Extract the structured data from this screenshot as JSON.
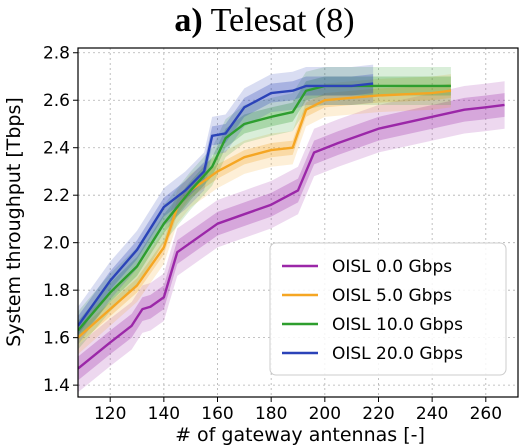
{
  "figure": {
    "title_tag": "a)",
    "title_text": "Telesat (8)"
  },
  "chart_data": {
    "type": "line",
    "title": "Telesat (8)",
    "xlabel": "# of gateway antennas [-]",
    "ylabel": "System throughput [Tbps]",
    "xlim": [
      108,
      272
    ],
    "ylim": [
      1.35,
      2.82
    ],
    "xticks": [
      120,
      140,
      160,
      180,
      200,
      220,
      240,
      260
    ],
    "yticks": [
      1.4,
      1.6,
      1.8,
      2.0,
      2.2,
      2.4,
      2.6,
      2.8
    ],
    "grid": true,
    "legend_position": "lower-right",
    "series": [
      {
        "name": "OISL 0.0 Gbps",
        "color": "#9b27a8",
        "x": [
          108,
          120,
          128,
          132,
          135,
          140,
          145,
          150,
          155,
          160,
          170,
          180,
          190,
          193,
          196,
          205,
          220,
          240,
          252,
          260,
          267
        ],
        "y": [
          1.47,
          1.58,
          1.65,
          1.72,
          1.73,
          1.77,
          1.96,
          2.0,
          2.04,
          2.08,
          2.12,
          2.16,
          2.22,
          2.3,
          2.38,
          2.42,
          2.48,
          2.53,
          2.56,
          2.57,
          2.58
        ],
        "band_inner": 0.05,
        "band_outer": 0.1
      },
      {
        "name": "OISL 5.0 Gbps",
        "color": "#f5a623",
        "x": [
          108,
          120,
          130,
          140,
          145,
          150,
          160,
          170,
          180,
          188,
          193,
          200,
          210,
          220,
          240,
          247
        ],
        "y": [
          1.6,
          1.72,
          1.82,
          1.98,
          2.15,
          2.22,
          2.3,
          2.36,
          2.39,
          2.4,
          2.56,
          2.6,
          2.61,
          2.62,
          2.63,
          2.64
        ],
        "band_inner": 0.03,
        "band_outer": 0.07
      },
      {
        "name": "OISL 10.0 Gbps",
        "color": "#2e9e2e",
        "x": [
          108,
          120,
          130,
          140,
          150,
          158,
          163,
          170,
          180,
          188,
          193,
          200,
          220,
          247
        ],
        "y": [
          1.63,
          1.79,
          1.9,
          2.08,
          2.22,
          2.32,
          2.44,
          2.5,
          2.53,
          2.55,
          2.64,
          2.66,
          2.66,
          2.66
        ],
        "band_inner": 0.04,
        "band_outer": 0.08
      },
      {
        "name": "OISL 20.0 Gbps",
        "color": "#2b43b8",
        "x": [
          108,
          120,
          130,
          140,
          148,
          155,
          158,
          163,
          170,
          180,
          188,
          193,
          200,
          210,
          218
        ],
        "y": [
          1.65,
          1.84,
          1.97,
          2.15,
          2.22,
          2.3,
          2.45,
          2.46,
          2.57,
          2.63,
          2.64,
          2.66,
          2.66,
          2.66,
          2.67
        ],
        "band_inner": 0.04,
        "band_outer": 0.08
      }
    ]
  }
}
